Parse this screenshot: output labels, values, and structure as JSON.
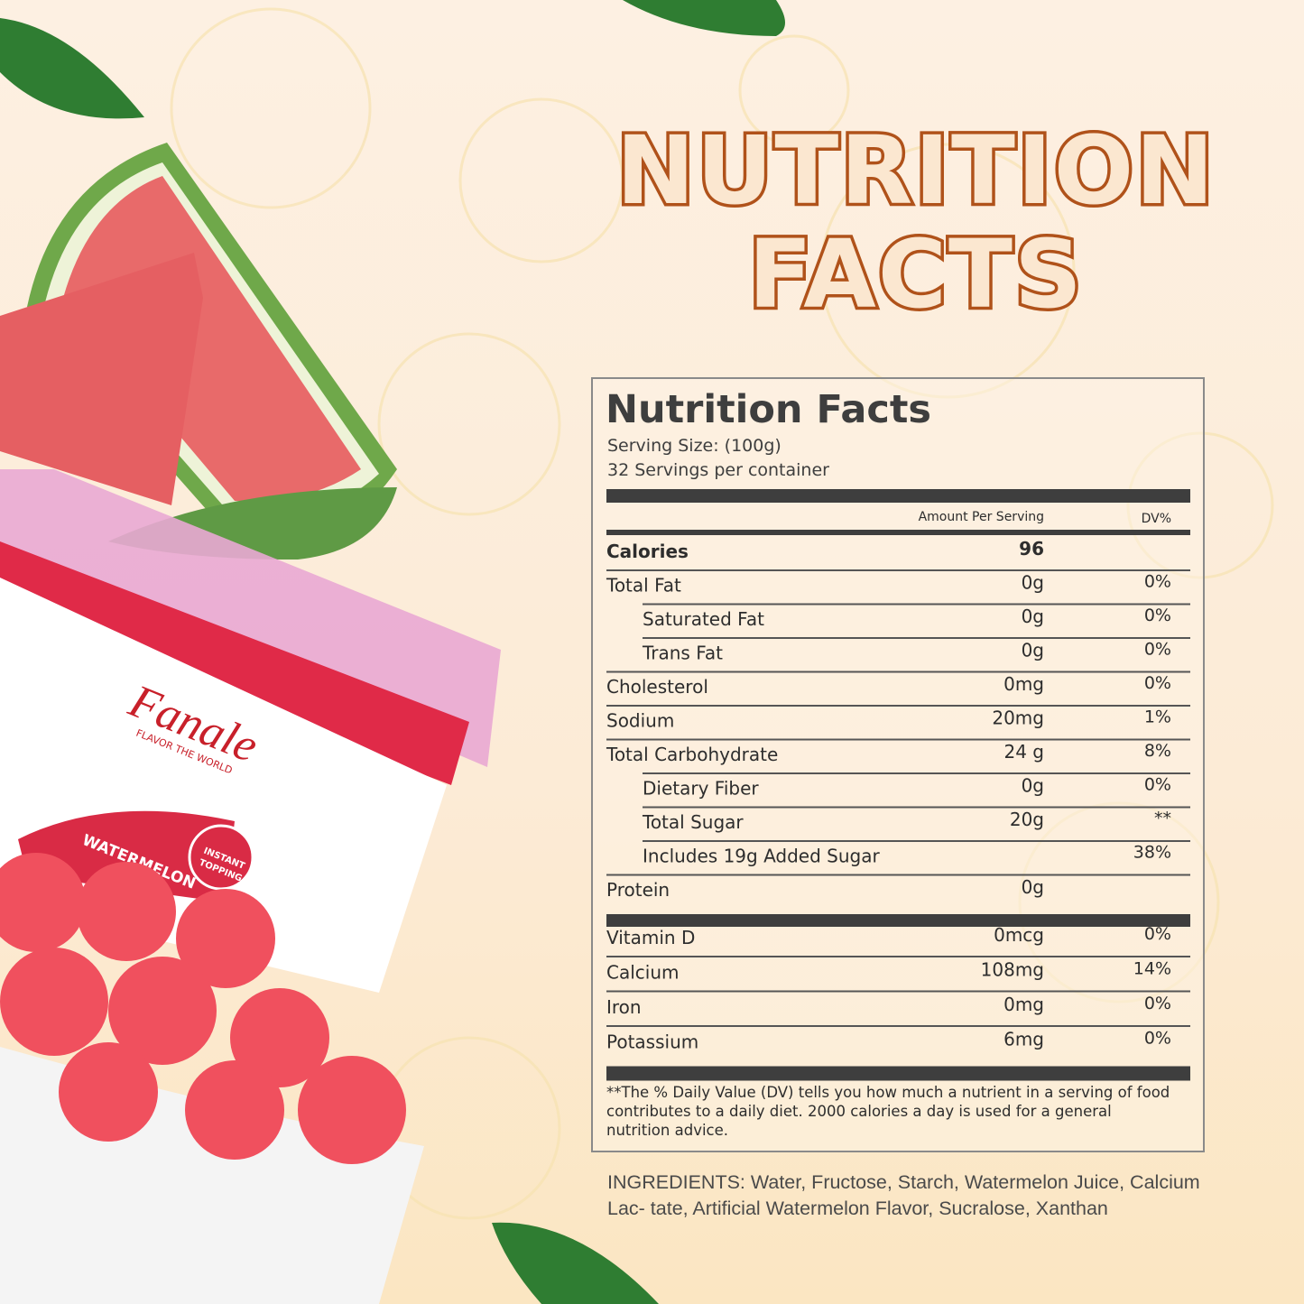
{
  "headline": {
    "lines": [
      "NUTRITION",
      "FACTS"
    ]
  },
  "product": {
    "brand": "Fanale",
    "tagline": "FLAVOR THE WORLD",
    "flavor": "WATERMELON",
    "badge": [
      "INSTANT",
      "TOPPING"
    ]
  },
  "panel": {
    "title": "Nutrition Facts",
    "serving_size": "Serving Size:  (100g)",
    "servings": "32 Servings per container",
    "header": {
      "amount": "Amount Per Serving",
      "dv": "DV%"
    },
    "rows": [
      {
        "name": "Calories",
        "amount": "96",
        "bold": true
      },
      {
        "name": "Total Fat",
        "amount": "0g",
        "dv": "0%"
      },
      {
        "name": "Saturated Fat",
        "amount": "0g",
        "dv": "0%",
        "indent": true
      },
      {
        "name": "Trans Fat",
        "amount": "0g",
        "dv": "0%",
        "indent": true
      },
      {
        "name": "Cholesterol",
        "amount": "0mg",
        "dv": "0%"
      },
      {
        "name": "Sodium",
        "amount": "20mg",
        "dv": "1%"
      },
      {
        "name": "Total Carbohydrate",
        "amount": "24 g",
        "dv": "8%"
      },
      {
        "name": "Dietary Fiber",
        "amount": "0g",
        "dv": "0%",
        "indent": true
      },
      {
        "name": "Total Sugar",
        "amount": "20g",
        "dv": "**",
        "indent": true
      },
      {
        "name": "Includes 19g Added Sugar",
        "dv": "38%",
        "indent": true
      },
      {
        "name": "Protein",
        "amount": "0g"
      }
    ],
    "vitamins": [
      {
        "name": "Vitamin D",
        "amount": "0mcg",
        "dv": "0%"
      },
      {
        "name": "Calcium",
        "amount": "108mg",
        "dv": "14%"
      },
      {
        "name": "Iron",
        "amount": "0mg",
        "dv": "0%"
      },
      {
        "name": "Potassium",
        "amount": "6mg",
        "dv": "0%"
      }
    ],
    "footnote": [
      "**The % Daily Value (DV) tells you how much a nutrient in a serving of food",
      "contributes to a daily diet. 2000 calories a  day is used for a general",
      "nutrition advice."
    ]
  },
  "ingredients": [
    "INGREDIENTS: Water, Fructose, Starch, Watermelon Juice, Calcium",
    "Lac- tate, Artificial Watermelon Flavor, Sucralose, Xanthan"
  ]
}
